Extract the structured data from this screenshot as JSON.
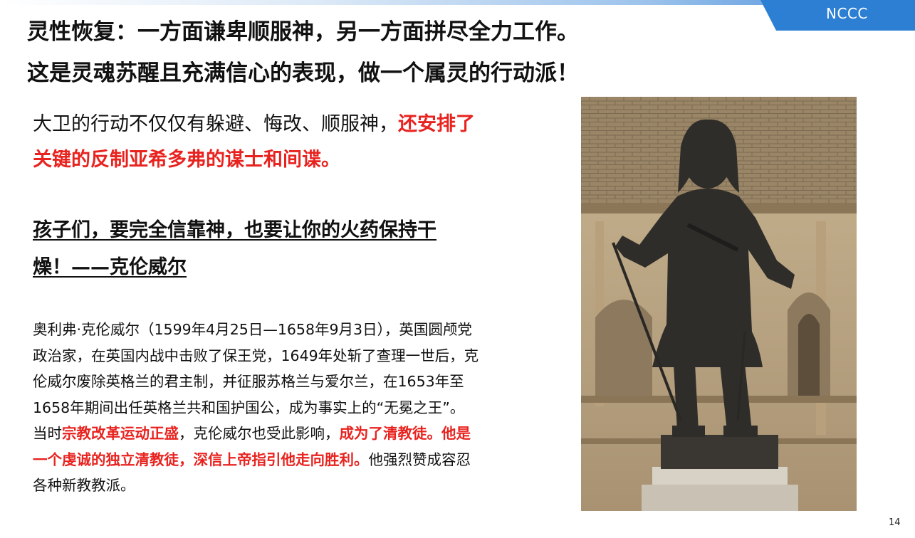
{
  "header": {
    "brand": "NCCC",
    "title_lines": [
      "灵性恢复：一方面谦卑顺服神，另一方面拼尽全力工作。",
      "这是灵魂苏醒且充满信心的表现，做一个属灵的行动派！"
    ]
  },
  "intro": {
    "plain": "大卫的行动不仅仅有躲避、悔改、顺服神，",
    "highlight_1": "还安排了",
    "highlight_2": "关键的反制亚希多弗的谋士和间谍。"
  },
  "quote": {
    "line_1": "孩子们，要完全信靠神，也要让你的火药保持干",
    "line_2": "燥！——克伦威尔"
  },
  "bio": {
    "line_1": "奥利弗·克伦威尔（1599年4月25日—1658年9月3日），英国圆颅党",
    "line_2": "政治家，在英国内战中击败了保王党，1649年处斩了查理一世后，克",
    "line_3": "伦威尔废除英格兰的君主制，并征服苏格兰与爱尔兰，在1653年至",
    "line_4": "1658年期间出任英格兰共和国护国公，成为事实上的“无冕之王”。",
    "line_5_a": "当时",
    "line_5_red_1": "宗教改革运动正盛",
    "line_5_b": "，克伦威尔也受此影响，",
    "line_5_red_2": "成为了清教徒。他是",
    "line_6_red": "一个虔诚的独立清教徒，深信上帝指引他走向胜利。",
    "line_6_b": "他强烈赞成容忍",
    "line_7": "各种新教教派。"
  },
  "page_number": "14",
  "colors": {
    "accent_blue": "#2d7fd3",
    "highlight_red": "#e8231f"
  }
}
